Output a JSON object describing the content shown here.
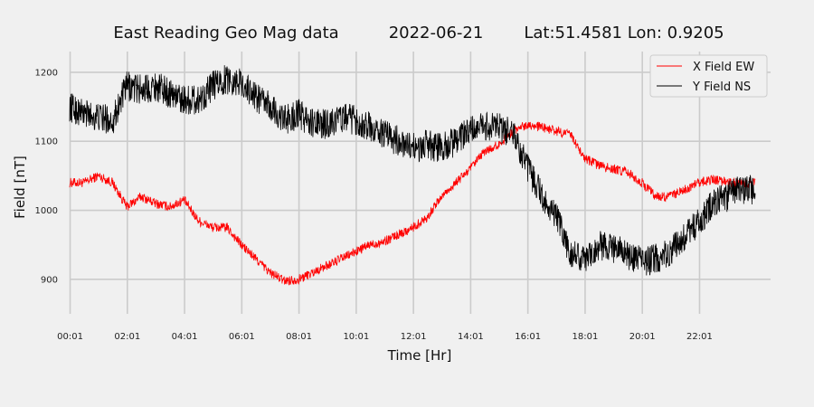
{
  "chart_data": {
    "type": "line",
    "title": {
      "main": "East Reading Geo Mag data",
      "date": "2022-06-21",
      "location": "Lat:51.4581  Lon: 0.9205"
    },
    "xlabel": "Time  [Hr]",
    "ylabel": "Field  [nT]",
    "xlim": [
      0,
      24.5
    ],
    "ylim": [
      850,
      1230
    ],
    "x_ticks": [
      {
        "value": 0.017,
        "label": "00:01"
      },
      {
        "value": 2.017,
        "label": "02:01"
      },
      {
        "value": 4.017,
        "label": "04:01"
      },
      {
        "value": 6.017,
        "label": "06:01"
      },
      {
        "value": 8.017,
        "label": "08:01"
      },
      {
        "value": 10.017,
        "label": "10:01"
      },
      {
        "value": 12.017,
        "label": "12:01"
      },
      {
        "value": 14.017,
        "label": "14:01"
      },
      {
        "value": 16.017,
        "label": "16:01"
      },
      {
        "value": 18.017,
        "label": "18:01"
      },
      {
        "value": 20.017,
        "label": "20:01"
      },
      {
        "value": 22.017,
        "label": "22:01"
      }
    ],
    "y_ticks": [
      900,
      1000,
      1100,
      1200
    ],
    "grid": true,
    "legend_position": "top-right",
    "series": [
      {
        "name": "X Field EW",
        "color": "#ff0000",
        "noise": 7,
        "x": [
          0,
          0.5,
          1,
          1.5,
          2,
          2.5,
          3,
          3.5,
          4,
          4.5,
          5,
          5.5,
          6,
          6.5,
          7,
          7.5,
          8,
          8.5,
          9,
          9.5,
          10,
          10.5,
          11,
          11.5,
          12,
          12.5,
          13,
          13.5,
          14,
          14.5,
          15,
          15.5,
          16,
          16.5,
          17,
          17.5,
          18,
          18.5,
          19,
          19.5,
          20,
          20.5,
          21,
          21.5,
          22,
          22.5,
          23,
          23.5,
          24
        ],
        "y": [
          1040,
          1040,
          1050,
          1040,
          1005,
          1020,
          1010,
          1005,
          1015,
          985,
          975,
          975,
          950,
          930,
          910,
          898,
          900,
          910,
          920,
          930,
          940,
          950,
          955,
          965,
          975,
          990,
          1020,
          1040,
          1060,
          1085,
          1095,
          1115,
          1125,
          1120,
          1115,
          1110,
          1075,
          1065,
          1060,
          1055,
          1040,
          1020,
          1020,
          1030,
          1040,
          1045,
          1040,
          1040,
          1040
        ]
      },
      {
        "name": "Y Field NS",
        "color": "#000000",
        "noise": 22,
        "x": [
          0,
          0.5,
          1,
          1.5,
          2,
          2.5,
          3,
          3.5,
          4,
          4.5,
          5,
          5.5,
          6,
          6.5,
          7,
          7.5,
          8,
          8.5,
          9,
          9.5,
          10,
          10.5,
          11,
          11.5,
          12,
          12.5,
          13,
          13.5,
          14,
          14.5,
          15,
          15.5,
          16,
          16.5,
          17,
          17.5,
          18,
          18.5,
          19,
          19.5,
          20,
          20.5,
          21,
          21.5,
          22,
          22.5,
          23,
          23.5,
          24
        ],
        "y": [
          1150,
          1140,
          1135,
          1130,
          1180,
          1175,
          1180,
          1170,
          1160,
          1160,
          1180,
          1190,
          1185,
          1165,
          1150,
          1130,
          1140,
          1125,
          1125,
          1135,
          1130,
          1120,
          1110,
          1100,
          1090,
          1095,
          1090,
          1100,
          1115,
          1120,
          1120,
          1110,
          1060,
          1020,
          990,
          940,
          930,
          950,
          945,
          935,
          925,
          930,
          940,
          960,
          985,
          1010,
          1020,
          1030,
          1030
        ]
      }
    ]
  }
}
